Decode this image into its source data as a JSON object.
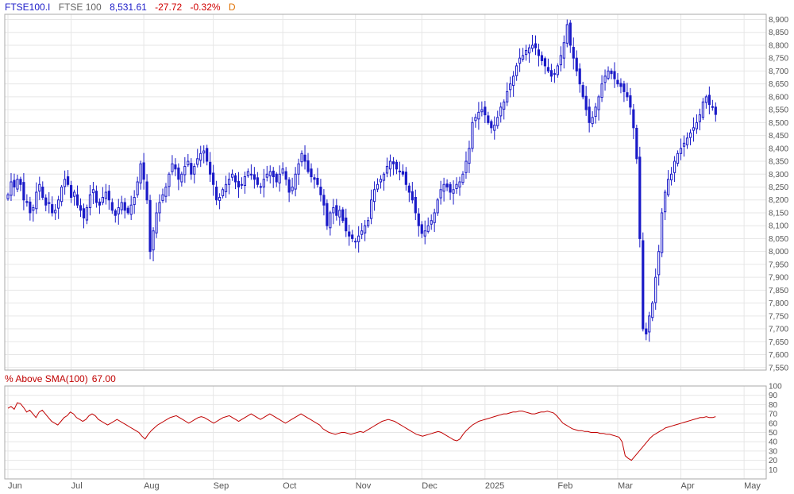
{
  "header": {
    "symbol": "FTSE100.I",
    "name": "FTSE 100",
    "last": "8,531.61",
    "change": "-27.72",
    "change_pct": "-0.32%",
    "period": "D"
  },
  "indicator": {
    "label": "% Above SMA(100)",
    "value": "67.00"
  },
  "colors": {
    "candle": "#1a1ac8",
    "indicator_line": "#c00000",
    "grid": "#e6e6e6",
    "border": "#aaaaaa",
    "symbol_text": "#1a1ac8",
    "name_text": "#666666",
    "last_text": "#1a1ac8",
    "change_text": "#d00000",
    "period_text": "#e07000",
    "axis_text": "#555555"
  },
  "chart_data": [
    {
      "type": "candlestick",
      "series": [
        {
          "name": "FTSE100.I"
        }
      ],
      "y_range": [
        7540,
        8920
      ],
      "y_ticks": [
        7550,
        7600,
        7650,
        7700,
        7750,
        7800,
        7850,
        7900,
        7950,
        8000,
        8050,
        8100,
        8150,
        8200,
        8250,
        8300,
        8350,
        8400,
        8450,
        8500,
        8550,
        8600,
        8650,
        8700,
        8750,
        8800,
        8850,
        8900
      ],
      "y_tick_labels": [
        "7,550",
        "7,600",
        "7,650",
        "7,700",
        "7,750",
        "7,800",
        "7,850",
        "7,900",
        "7,950",
        "8,000",
        "8,050",
        "8,100",
        "8,150",
        "8,200",
        "8,250",
        "8,300",
        "8,350",
        "8,400",
        "8,450",
        "8,500",
        "8,550",
        "8,600",
        "8,650",
        "8,700",
        "8,750",
        "8,800",
        "8,850",
        "8,900"
      ],
      "x_labels": [
        "Jun",
        "Jul",
        "Aug",
        "Sep",
        "Oct",
        "Nov",
        "Dec",
        "2025",
        "Feb",
        "Mar",
        "Apr",
        "May"
      ],
      "x_label_days": [
        0,
        20,
        43,
        65,
        87,
        110,
        131,
        151,
        174,
        193,
        213,
        233
      ],
      "num_days": 240,
      "closes": [
        8220,
        8270,
        8250,
        8280,
        8260,
        8200,
        8190,
        8150,
        8170,
        8230,
        8260,
        8210,
        8180,
        8190,
        8150,
        8160,
        8200,
        8250,
        8280,
        8260,
        8210,
        8230,
        8180,
        8160,
        8130,
        8170,
        8220,
        8240,
        8190,
        8180,
        8210,
        8230,
        8200,
        8160,
        8140,
        8170,
        8190,
        8160,
        8150,
        8180,
        8210,
        8270,
        8340,
        8280,
        8200,
        8000,
        8080,
        8150,
        8190,
        8220,
        8250,
        8300,
        8340,
        8320,
        8280,
        8300,
        8330,
        8350,
        8300,
        8330,
        8360,
        8380,
        8390,
        8350,
        8300,
        8260,
        8200,
        8210,
        8240,
        8260,
        8280,
        8300,
        8270,
        8250,
        8260,
        8290,
        8310,
        8300,
        8280,
        8260,
        8250,
        8280,
        8300,
        8310,
        8290,
        8270,
        8300,
        8320,
        8280,
        8230,
        8250,
        8300,
        8340,
        8380,
        8350,
        8310,
        8290,
        8280,
        8260,
        8220,
        8180,
        8100,
        8150,
        8170,
        8140,
        8160,
        8120,
        8080,
        8060,
        8050,
        8040,
        8060,
        8080,
        8100,
        8120,
        8200,
        8240,
        8260,
        8280,
        8300,
        8330,
        8350,
        8340,
        8320,
        8310,
        8300,
        8260,
        8230,
        8200,
        8150,
        8100,
        8070,
        8080,
        8100,
        8120,
        8150,
        8200,
        8240,
        8260,
        8250,
        8230,
        8240,
        8260,
        8270,
        8300,
        8350,
        8400,
        8500,
        8520,
        8540,
        8550,
        8530,
        8500,
        8480,
        8490,
        8520,
        8560,
        8580,
        8620,
        8650,
        8680,
        8720,
        8750,
        8760,
        8780,
        8790,
        8800,
        8790,
        8760,
        8740,
        8720,
        8700,
        8680,
        8690,
        8720,
        8760,
        8810,
        8880,
        8800,
        8750,
        8700,
        8650,
        8600,
        8550,
        8500,
        8520,
        8560,
        8600,
        8650,
        8680,
        8700,
        8690,
        8670,
        8650,
        8640,
        8620,
        8600,
        8560,
        8480,
        8360,
        8050,
        7700,
        7680,
        7750,
        7800,
        7900,
        8000,
        8150,
        8230,
        8280,
        8300,
        8350,
        8380,
        8400,
        8420,
        8440,
        8460,
        8480,
        8500,
        8530,
        8580,
        8600,
        8570,
        8560,
        8531.61
      ]
    },
    {
      "type": "line",
      "series": [
        {
          "name": "% Above SMA(100)"
        }
      ],
      "y_range": [
        0,
        100
      ],
      "y_ticks": [
        10,
        20,
        30,
        40,
        50,
        60,
        70,
        80,
        90,
        100
      ],
      "y_tick_labels": [
        "10",
        "20",
        "30",
        "40",
        "50",
        "60",
        "70",
        "80",
        "90",
        "100"
      ],
      "values": [
        76,
        78,
        75,
        82,
        81,
        77,
        72,
        74,
        70,
        66,
        72,
        74,
        70,
        66,
        62,
        60,
        58,
        62,
        66,
        68,
        72,
        70,
        66,
        64,
        62,
        64,
        68,
        70,
        68,
        64,
        62,
        60,
        58,
        60,
        62,
        64,
        62,
        60,
        58,
        56,
        54,
        52,
        50,
        46,
        43,
        48,
        52,
        55,
        58,
        60,
        62,
        64,
        66,
        67,
        68,
        66,
        64,
        62,
        60,
        62,
        64,
        66,
        67,
        66,
        64,
        62,
        60,
        62,
        64,
        66,
        67,
        68,
        66,
        64,
        62,
        64,
        66,
        68,
        70,
        68,
        66,
        64,
        66,
        68,
        70,
        68,
        66,
        64,
        62,
        60,
        62,
        64,
        66,
        68,
        70,
        68,
        66,
        64,
        62,
        60,
        58,
        54,
        52,
        50,
        49,
        48,
        49,
        50,
        50,
        49,
        48,
        49,
        50,
        51,
        50,
        52,
        54,
        56,
        58,
        60,
        62,
        63,
        64,
        63,
        62,
        60,
        58,
        56,
        54,
        52,
        50,
        48,
        47,
        46,
        47,
        48,
        49,
        50,
        51,
        50,
        48,
        46,
        44,
        42,
        41,
        43,
        48,
        52,
        55,
        58,
        60,
        62,
        63,
        64,
        65,
        66,
        67,
        68,
        69,
        70,
        70,
        71,
        72,
        72,
        73,
        73,
        72,
        71,
        70,
        70,
        71,
        72,
        72,
        73,
        72,
        71,
        68,
        64,
        60,
        58,
        56,
        54,
        53,
        52,
        52,
        51,
        51,
        50,
        50,
        50,
        49,
        49,
        48,
        48,
        47,
        46,
        45,
        40,
        25,
        22,
        20,
        24,
        28,
        32,
        36,
        40,
        44,
        47,
        49,
        51,
        53,
        55,
        56,
        57,
        58,
        59,
        60,
        61,
        62,
        63,
        64,
        65,
        66,
        66,
        67,
        66,
        66,
        67
      ]
    }
  ]
}
